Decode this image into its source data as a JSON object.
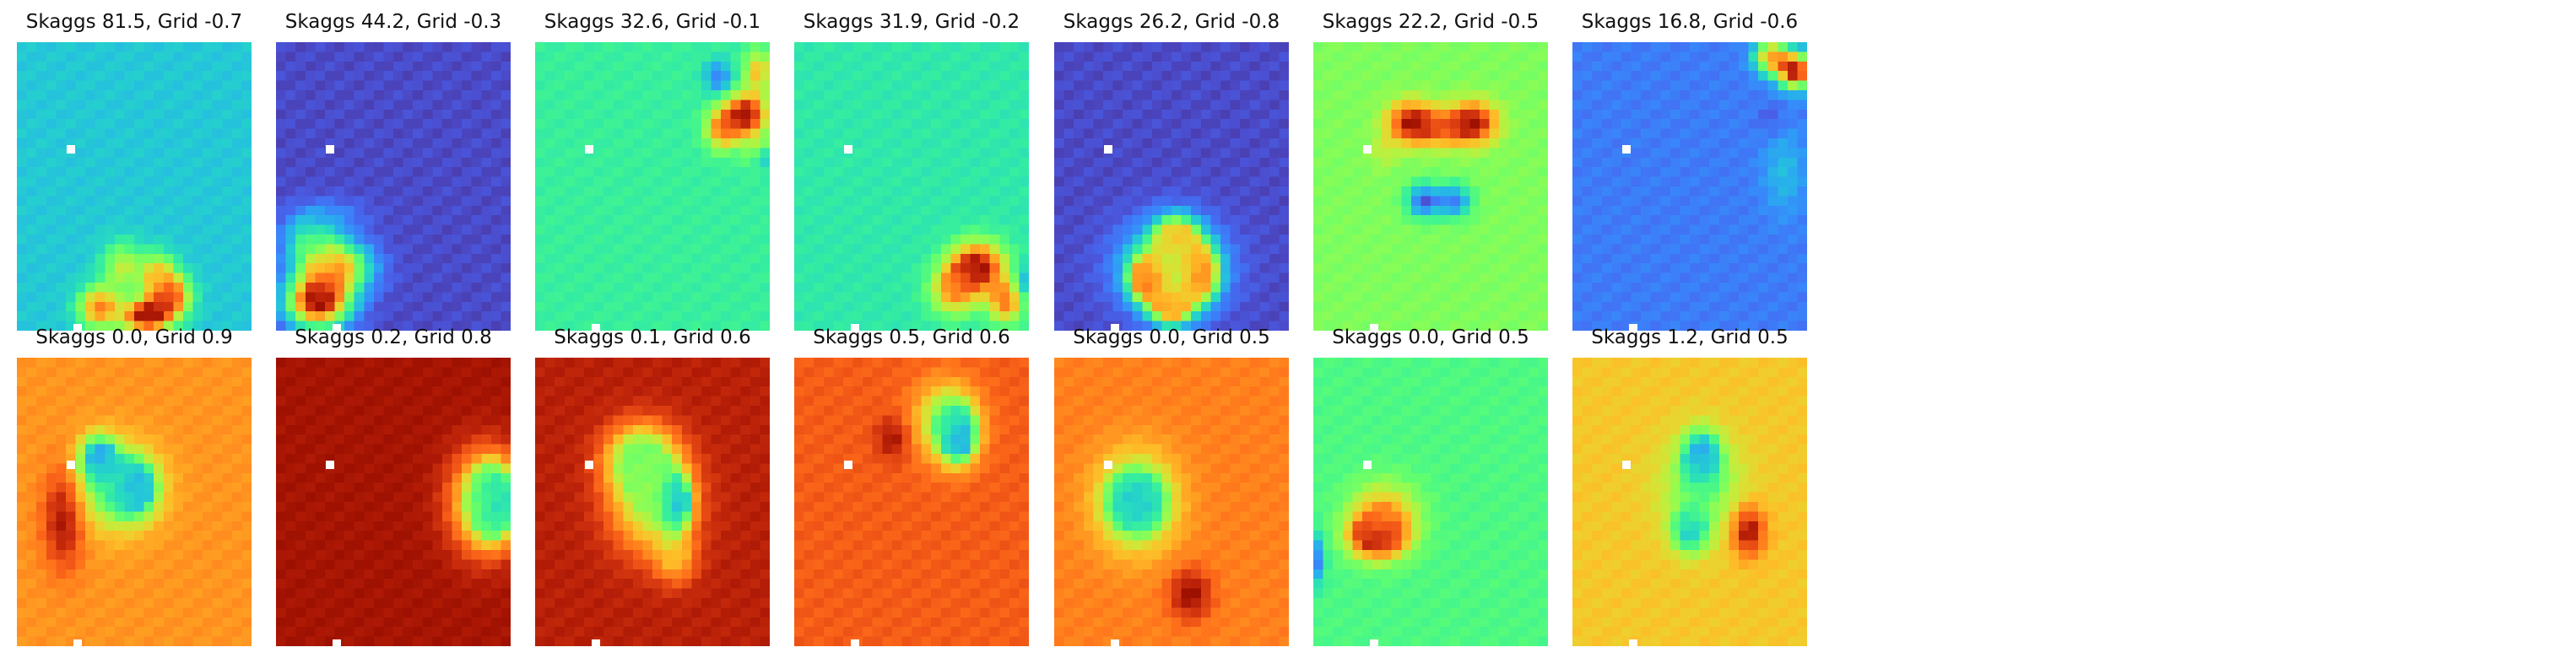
{
  "chart_data": {
    "type": "heatmap",
    "colormap": "turbo",
    "grid": false,
    "axes_visible": false,
    "layout": {
      "rows": 2,
      "cols": 7
    },
    "panels": [
      {
        "title": "Skaggs 81.5, Grid -0.7",
        "skaggs": 81.5,
        "grid": -0.7,
        "base": 0.27,
        "blobs": [
          [
            0.35,
            0.92,
            0.75,
            0.06,
            0.05
          ],
          [
            0.55,
            0.95,
            0.95,
            0.07,
            0.04
          ],
          [
            0.65,
            0.88,
            0.85,
            0.06,
            0.05
          ],
          [
            0.45,
            0.78,
            0.55,
            0.06,
            0.06
          ],
          [
            0.6,
            0.8,
            0.6,
            0.05,
            0.05
          ]
        ],
        "markers": [
          [
            0.23,
            0.37
          ],
          [
            0.26,
            0.99
          ]
        ]
      },
      {
        "title": "Skaggs 44.2, Grid -0.3",
        "skaggs": 44.2,
        "grid": -0.3,
        "base": 0.08,
        "blobs": [
          [
            0.18,
            0.9,
            0.95,
            0.09,
            0.06
          ],
          [
            0.25,
            0.78,
            0.7,
            0.1,
            0.06
          ],
          [
            0.15,
            0.68,
            0.35,
            0.08,
            0.06
          ],
          [
            0.25,
            0.6,
            0.15,
            0.1,
            0.04
          ]
        ],
        "markers": [
          [
            0.23,
            0.37
          ],
          [
            0.26,
            0.99
          ]
        ]
      },
      {
        "title": "Skaggs 32.6, Grid -0.1",
        "skaggs": 32.6,
        "grid": -0.1,
        "base": 0.36,
        "blobs": [
          [
            0.9,
            0.25,
            0.95,
            0.06,
            0.05
          ],
          [
            0.8,
            0.3,
            0.75,
            0.05,
            0.05
          ],
          [
            0.95,
            0.1,
            0.65,
            0.04,
            0.05
          ],
          [
            0.95,
            0.38,
            0.55,
            0.04,
            0.04
          ],
          [
            0.78,
            0.12,
            0.15,
            0.04,
            0.04
          ],
          [
            0.97,
            0.4,
            0.15,
            0.03,
            0.03
          ]
        ],
        "markers": [
          [
            0.23,
            0.37
          ],
          [
            0.26,
            0.99
          ]
        ]
      },
      {
        "title": "Skaggs 31.9, Grid -0.2",
        "skaggs": 31.9,
        "grid": -0.2,
        "base": 0.34,
        "blobs": [
          [
            0.78,
            0.78,
            0.95,
            0.08,
            0.06
          ],
          [
            0.9,
            0.9,
            0.75,
            0.05,
            0.05
          ],
          [
            0.68,
            0.86,
            0.7,
            0.07,
            0.06
          ],
          [
            0.98,
            0.83,
            0.2,
            0.03,
            0.04
          ]
        ],
        "markers": [
          [
            0.23,
            0.37
          ],
          [
            0.26,
            0.99
          ]
        ]
      },
      {
        "title": "Skaggs 26.2, Grid -0.8",
        "skaggs": 26.2,
        "grid": -0.8,
        "base": 0.08,
        "blobs": [
          [
            0.5,
            0.78,
            0.5,
            0.14,
            0.1
          ],
          [
            0.4,
            0.82,
            0.9,
            0.05,
            0.05
          ],
          [
            0.62,
            0.8,
            0.85,
            0.05,
            0.06
          ],
          [
            0.52,
            0.68,
            0.7,
            0.06,
            0.05
          ],
          [
            0.5,
            0.92,
            0.75,
            0.06,
            0.04
          ]
        ],
        "markers": [
          [
            0.23,
            0.37
          ],
          [
            0.26,
            0.99
          ]
        ]
      },
      {
        "title": "Skaggs 22.2, Grid -0.5",
        "skaggs": 22.2,
        "grid": -0.5,
        "base": 0.47,
        "blobs": [
          [
            0.42,
            0.28,
            0.95,
            0.07,
            0.05
          ],
          [
            0.68,
            0.28,
            0.95,
            0.07,
            0.05
          ],
          [
            0.55,
            0.3,
            0.75,
            0.06,
            0.04
          ],
          [
            0.47,
            0.55,
            0.1,
            0.05,
            0.04
          ],
          [
            0.6,
            0.55,
            0.15,
            0.05,
            0.04
          ],
          [
            0.3,
            0.38,
            0.55,
            0.04,
            0.04
          ]
        ],
        "markers": [
          [
            0.23,
            0.37
          ],
          [
            0.26,
            0.99
          ]
        ]
      },
      {
        "title": "Skaggs 16.8, Grid -0.6",
        "skaggs": 16.8,
        "grid": -0.6,
        "base": 0.15,
        "blobs": [
          [
            0.95,
            0.1,
            0.95,
            0.05,
            0.04
          ],
          [
            0.85,
            0.05,
            0.7,
            0.05,
            0.04
          ],
          [
            0.85,
            0.27,
            0.1,
            0.04,
            0.04
          ],
          [
            0.9,
            0.45,
            0.25,
            0.06,
            0.1
          ]
        ],
        "markers": [
          [
            0.23,
            0.37
          ],
          [
            0.26,
            0.99
          ]
        ]
      },
      {
        "title": "Skaggs 0.0, Grid 0.9",
        "skaggs": 0.0,
        "grid": 0.9,
        "base": 0.72,
        "blobs": [
          [
            0.2,
            0.55,
            0.95,
            0.06,
            0.12
          ],
          [
            0.35,
            0.35,
            0.15,
            0.05,
            0.05
          ],
          [
            0.5,
            0.45,
            0.15,
            0.06,
            0.06
          ],
          [
            0.42,
            0.45,
            0.4,
            0.12,
            0.1
          ]
        ],
        "markers": [
          [
            0.23,
            0.37
          ],
          [
            0.26,
            0.99
          ]
        ]
      },
      {
        "title": "Skaggs 0.2, Grid 0.8",
        "skaggs": 0.2,
        "grid": 0.8,
        "base": 0.93,
        "blobs": [
          [
            0.93,
            0.5,
            0.15,
            0.06,
            0.08
          ],
          [
            0.88,
            0.5,
            0.55,
            0.1,
            0.12
          ]
        ],
        "markers": [
          [
            0.23,
            0.37
          ],
          [
            0.26,
            0.99
          ]
        ]
      },
      {
        "title": "Skaggs 0.1, Grid 0.6",
        "skaggs": 0.1,
        "grid": 0.6,
        "base": 0.9,
        "blobs": [
          [
            0.6,
            0.5,
            0.12,
            0.04,
            0.06
          ],
          [
            0.45,
            0.35,
            0.45,
            0.1,
            0.08
          ],
          [
            0.5,
            0.5,
            0.5,
            0.12,
            0.12
          ],
          [
            0.6,
            0.7,
            0.7,
            0.06,
            0.06
          ]
        ],
        "markers": [
          [
            0.23,
            0.37
          ],
          [
            0.26,
            0.99
          ]
        ]
      },
      {
        "title": "Skaggs 0.5, Grid 0.6",
        "skaggs": 0.5,
        "grid": 0.6,
        "base": 0.8,
        "blobs": [
          [
            0.7,
            0.27,
            0.12,
            0.05,
            0.06
          ],
          [
            0.65,
            0.22,
            0.45,
            0.09,
            0.09
          ],
          [
            0.42,
            0.28,
            0.93,
            0.05,
            0.05
          ]
        ],
        "markers": [
          [
            0.23,
            0.37
          ],
          [
            0.26,
            0.99
          ]
        ]
      },
      {
        "title": "Skaggs 0.0, Grid 0.5",
        "skaggs": 0.0,
        "grid": 0.5,
        "base": 0.75,
        "blobs": [
          [
            0.35,
            0.5,
            0.12,
            0.07,
            0.06
          ],
          [
            0.35,
            0.5,
            0.45,
            0.12,
            0.12
          ],
          [
            0.58,
            0.82,
            0.95,
            0.06,
            0.06
          ]
        ],
        "markers": [
          [
            0.23,
            0.37
          ],
          [
            0.26,
            0.99
          ]
        ]
      },
      {
        "title": "Skaggs 0.0, Grid 0.5",
        "skaggs": 0.0,
        "grid": 0.5,
        "base": 0.4,
        "blobs": [
          [
            0.27,
            0.62,
            0.95,
            0.08,
            0.05
          ],
          [
            0.0,
            0.7,
            0.1,
            0.03,
            0.06
          ],
          [
            0.3,
            0.55,
            0.7,
            0.1,
            0.08
          ]
        ],
        "markers": [
          [
            0.23,
            0.37
          ],
          [
            0.26,
            0.99
          ]
        ]
      },
      {
        "title": "Skaggs 1.2, Grid 0.5",
        "skaggs": 1.2,
        "grid": 0.5,
        "base": 0.64,
        "blobs": [
          [
            0.55,
            0.35,
            0.1,
            0.05,
            0.06
          ],
          [
            0.75,
            0.6,
            0.95,
            0.05,
            0.06
          ],
          [
            0.5,
            0.6,
            0.25,
            0.05,
            0.05
          ],
          [
            0.55,
            0.45,
            0.45,
            0.12,
            0.12
          ]
        ],
        "markers": [
          [
            0.23,
            0.37
          ],
          [
            0.26,
            0.99
          ]
        ]
      }
    ]
  }
}
